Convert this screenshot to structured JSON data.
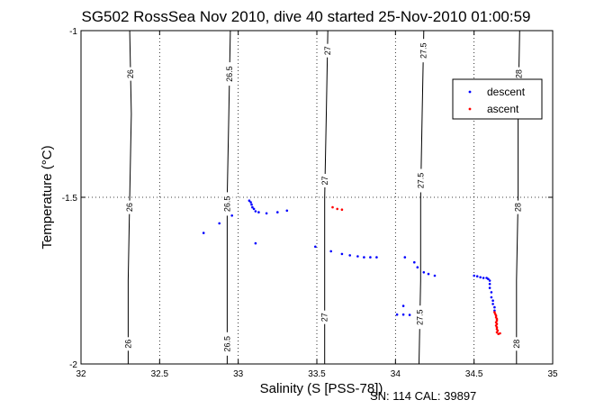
{
  "chart_data": {
    "type": "scatter",
    "title": "SG502 RossSea Nov 2010, dive 40 started 25-Nov-2010 01:00:59",
    "xlabel": "Salinity (S [PSS-78])",
    "ylabel": "Temperature (°C)",
    "xlim": [
      32,
      35
    ],
    "ylim": [
      -2,
      -1
    ],
    "x_ticks": [
      32,
      32.5,
      33,
      33.5,
      34,
      34.5,
      35
    ],
    "x_tick_labels": [
      "32",
      "32.5",
      "33",
      "33.5",
      "34",
      "34.5",
      "35"
    ],
    "y_ticks": [
      -2,
      -1.5,
      -1
    ],
    "y_tick_labels": [
      "-2",
      "-1.5",
      "-1"
    ],
    "grid": true,
    "legend_position": "top-right",
    "density_contours": [
      {
        "label": "26",
        "line": [
          [
            32.31,
            -1.0
          ],
          [
            32.32,
            -1.25
          ],
          [
            32.31,
            -1.5
          ],
          [
            32.3,
            -1.75
          ],
          [
            32.3,
            -2.0
          ]
        ],
        "label_at": [
          -1.13,
          -1.53,
          -1.94
        ]
      },
      {
        "label": "26.5",
        "line": [
          [
            32.95,
            -1.0
          ],
          [
            32.94,
            -1.25
          ],
          [
            32.93,
            -1.5
          ],
          [
            32.93,
            -1.75
          ],
          [
            32.93,
            -2.0
          ]
        ],
        "label_at": [
          -1.13,
          -1.52,
          -1.94
        ]
      },
      {
        "label": "27",
        "line": [
          [
            33.57,
            -1.0
          ],
          [
            33.56,
            -1.25
          ],
          [
            33.55,
            -1.5
          ],
          [
            33.55,
            -1.75
          ],
          [
            33.55,
            -2.0
          ]
        ],
        "label_at": [
          -1.06,
          -1.45,
          -1.86
        ]
      },
      {
        "label": "27.5",
        "line": [
          [
            34.18,
            -1.0
          ],
          [
            34.17,
            -1.25
          ],
          [
            34.16,
            -1.5
          ],
          [
            34.16,
            -1.75
          ],
          [
            34.15,
            -2.0
          ]
        ],
        "label_at": [
          -1.06,
          -1.45,
          -1.86
        ]
      },
      {
        "label": "28",
        "line": [
          [
            34.79,
            -1.0
          ],
          [
            34.78,
            -1.25
          ],
          [
            34.78,
            -1.5
          ],
          [
            34.77,
            -1.75
          ],
          [
            34.77,
            -2.0
          ]
        ],
        "label_at": [
          -1.13,
          -1.53,
          -1.94
        ]
      }
    ],
    "series": [
      {
        "name": "descent",
        "color": "#0000ff",
        "points": [
          [
            32.78,
            -1.607
          ],
          [
            32.88,
            -1.578
          ],
          [
            32.96,
            -1.555
          ],
          [
            33.07,
            -1.51
          ],
          [
            33.08,
            -1.515
          ],
          [
            33.085,
            -1.522
          ],
          [
            33.09,
            -1.53
          ],
          [
            33.1,
            -1.535
          ],
          [
            33.11,
            -1.542
          ],
          [
            33.13,
            -1.545
          ],
          [
            33.18,
            -1.548
          ],
          [
            33.25,
            -1.545
          ],
          [
            33.31,
            -1.54
          ],
          [
            33.11,
            -1.638
          ],
          [
            33.49,
            -1.648
          ],
          [
            33.59,
            -1.662
          ],
          [
            33.66,
            -1.67
          ],
          [
            33.71,
            -1.674
          ],
          [
            33.76,
            -1.677
          ],
          [
            33.8,
            -1.68
          ],
          [
            33.84,
            -1.68
          ],
          [
            33.88,
            -1.68
          ],
          [
            34.06,
            -1.68
          ],
          [
            34.12,
            -1.695
          ],
          [
            34.14,
            -1.71
          ],
          [
            34.18,
            -1.725
          ],
          [
            34.21,
            -1.73
          ],
          [
            34.25,
            -1.735
          ],
          [
            34.05,
            -1.826
          ],
          [
            34.01,
            -1.852
          ],
          [
            34.05,
            -1.852
          ],
          [
            34.09,
            -1.853
          ],
          [
            34.5,
            -1.735
          ],
          [
            34.52,
            -1.737
          ],
          [
            34.54,
            -1.74
          ],
          [
            34.56,
            -1.742
          ],
          [
            34.58,
            -1.742
          ],
          [
            34.59,
            -1.745
          ],
          [
            34.6,
            -1.75
          ],
          [
            34.6,
            -1.76
          ],
          [
            34.6,
            -1.772
          ],
          [
            34.61,
            -1.785
          ],
          [
            34.61,
            -1.8
          ],
          [
            34.62,
            -1.81
          ],
          [
            34.62,
            -1.82
          ],
          [
            34.63,
            -1.83
          ],
          [
            34.63,
            -1.84
          ]
        ]
      },
      {
        "name": "ascent",
        "color": "#ff0000",
        "points": [
          [
            33.63,
            -1.535
          ],
          [
            33.66,
            -1.537
          ],
          [
            33.6,
            -1.53
          ],
          [
            34.63,
            -1.845
          ],
          [
            34.635,
            -1.85
          ],
          [
            34.64,
            -1.855
          ],
          [
            34.64,
            -1.86
          ],
          [
            34.645,
            -1.865
          ],
          [
            34.645,
            -1.87
          ],
          [
            34.64,
            -1.875
          ],
          [
            34.645,
            -1.88
          ],
          [
            34.64,
            -1.885
          ],
          [
            34.645,
            -1.89
          ],
          [
            34.645,
            -1.895
          ],
          [
            34.65,
            -1.9
          ],
          [
            34.645,
            -1.905
          ],
          [
            34.655,
            -1.91
          ],
          [
            34.665,
            -1.908
          ]
        ]
      }
    ]
  },
  "footer": {
    "sn_text": "SN: 114  CAL: 39897"
  }
}
